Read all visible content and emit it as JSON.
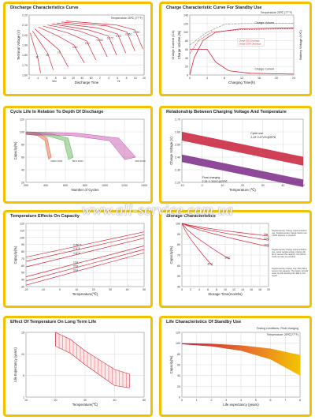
{
  "watermark": "www.all-service.com.ua",
  "colors": {
    "frame": "#f2c200",
    "curve": "#d6263a",
    "grid": "#cfcfcf",
    "fill_red": "#c81e3a",
    "fill_purple": "#7a2a86",
    "fill_yellow": "#f3c400"
  },
  "panels": [
    {
      "title": "Discharge Characteristics Curve",
      "chart_data": {
        "type": "line",
        "title": "Discharge Characteristics Curve",
        "annotation": "Temperature 25℃ (77°F)",
        "xlabel": "Discharge Time",
        "ylabel": "Terminal Voltage (V)",
        "ylim": [
          1.6,
          2.2
        ],
        "yticks": [
          "2.20",
          "2.10",
          "2.00",
          "1.90",
          "1.80",
          "1.70",
          "1.60"
        ],
        "xtick_groups": [
          {
            "unit": "Min",
            "ticks": [
              "2",
              "4",
              "6",
              "8",
              "10",
              "20",
              "40",
              "60"
            ]
          },
          {
            "unit": "Hr",
            "ticks": [
              "2",
              "4",
              "6",
              "8",
              "10",
              "20"
            ]
          }
        ],
        "series": [
          {
            "name": "3C",
            "points": [
              [
                0.1,
                2.02
              ],
              [
                0.4,
                1.9
              ],
              [
                0.7,
                1.8
              ],
              [
                1.0,
                1.62
              ]
            ]
          },
          {
            "name": "2C",
            "points": [
              [
                0.3,
                2.04
              ],
              [
                1.0,
                1.92
              ],
              [
                1.6,
                1.82
              ],
              [
                2.1,
                1.65
              ]
            ]
          },
          {
            "name": "1C",
            "points": [
              [
                0.5,
                2.06
              ],
              [
                1.6,
                1.95
              ],
              [
                2.6,
                1.85
              ],
              [
                3.4,
                1.68
              ]
            ]
          },
          {
            "name": "0.6C",
            "points": [
              [
                0.8,
                2.08
              ],
              [
                2.5,
                1.99
              ],
              [
                3.9,
                1.9
              ],
              [
                4.8,
                1.72
              ]
            ]
          },
          {
            "name": "0.4C",
            "points": [
              [
                1.2,
                2.09
              ],
              [
                3.4,
                2.02
              ],
              [
                5.0,
                1.94
              ],
              [
                5.8,
                1.75
              ]
            ]
          },
          {
            "name": "0.25C",
            "points": [
              [
                1.6,
                2.1
              ],
              [
                4.4,
                2.04
              ],
              [
                6.0,
                1.97
              ],
              [
                6.8,
                1.78
              ]
            ]
          },
          {
            "name": "0.17C",
            "points": [
              [
                2.0,
                2.11
              ],
              [
                5.2,
                2.05
              ],
              [
                6.9,
                1.99
              ],
              [
                7.6,
                1.8
              ]
            ]
          },
          {
            "name": "0.1C",
            "points": [
              [
                2.4,
                2.12
              ],
              [
                6.0,
                2.07
              ],
              [
                7.7,
                2.01
              ],
              [
                8.4,
                1.82
              ]
            ]
          },
          {
            "name": "0.05C",
            "points": [
              [
                2.8,
                2.13
              ],
              [
                6.8,
                2.09
              ],
              [
                8.5,
                2.03
              ],
              [
                9.2,
                1.84
              ]
            ]
          },
          {
            "name": "0.09C",
            "points": [
              [
                3.2,
                2.14
              ],
              [
                7.6,
                2.1
              ],
              [
                9.2,
                2.05
              ],
              [
                9.9,
                1.86
              ]
            ]
          }
        ]
      }
    },
    {
      "title": "Charge Characteristic Curve For Standby Use",
      "chart_data": {
        "type": "line",
        "title": "Charge Characteristic Curve For Standby Use",
        "annotation": "Temperature 25℃ (77°F)",
        "xlabel": "Charging Time(h)",
        "ylabel_left": "Charge Volume (%)",
        "ylabel_left2": "Charge Current (CA)",
        "ylabel_right": "Battery Voltage (V/C)",
        "xticks": [
          "0",
          "4",
          "8",
          "12",
          "16",
          "20",
          "24"
        ],
        "yticks_left": [
          "140",
          "120",
          "100",
          "80",
          "60",
          "40",
          "20",
          "0"
        ],
        "labels": [
          "Charge Volume",
          "Charge Current"
        ],
        "legend_small": [
          "Charge 50% Discharge",
          "Charge 100% Discharge"
        ]
      }
    },
    {
      "title": "Cycle Life In Relation To Depth Of Discharge",
      "chart_data": {
        "type": "line",
        "title": "Cycle Life In Relation To Depth Of Discharge",
        "xlabel": "Number of Cycles",
        "ylabel": "Capacity(%)",
        "xticks": [
          "200",
          "400",
          "600",
          "800",
          "1000",
          "1200",
          "1400"
        ],
        "yticks": [
          "120",
          "100",
          "80",
          "60",
          "40",
          "20"
        ],
        "series": [
          {
            "name": "100% DOD",
            "points": [
              [
                0,
                100
              ],
              [
                150,
                98
              ],
              [
                250,
                90
              ],
              [
                300,
                60
              ]
            ]
          },
          {
            "name": "50% DOD",
            "points": [
              [
                0,
                100
              ],
              [
                300,
                97
              ],
              [
                500,
                90
              ],
              [
                560,
                60
              ]
            ]
          },
          {
            "name": "30% DOD",
            "points": [
              [
                0,
                100
              ],
              [
                600,
                98
              ],
              [
                1100,
                90
              ],
              [
                1300,
                60
              ]
            ]
          }
        ]
      }
    },
    {
      "title": "Relationship Between Charging Voltage And Temperature",
      "chart_data": {
        "type": "area",
        "title": "Relationship Between Charging Voltage And Temperature",
        "xlabel": "Temperature (℃)",
        "ylabel": "Charge Voltage (V)",
        "xticks": [
          "-10",
          "0",
          "10",
          "20",
          "30",
          "40",
          "50"
        ],
        "yticks": [
          "2.70",
          "2.60",
          "2.50",
          "2.40",
          "2.30",
          "2.20"
        ],
        "bands": [
          {
            "name": "Cycle use",
            "label": "2.43~2.47V/C@25℃",
            "range": [
              2.43,
              2.47
            ]
          },
          {
            "name": "Float charging",
            "label": "2.25~2.30V/C@25℃",
            "range": [
              2.25,
              2.3
            ]
          }
        ]
      }
    },
    {
      "title": "Temperature Effects On Capacity",
      "chart_data": {
        "type": "line",
        "title": "Temperature Effects On Capacity",
        "xlabel": "Temperature(℃)",
        "ylabel": "Capacity(%)",
        "xticks": [
          "-20",
          "-10",
          "0",
          "10",
          "20",
          "30",
          "40",
          "50"
        ],
        "yticks": [
          "120",
          "110",
          "100",
          "90",
          "80",
          "70",
          "60",
          "50",
          "40",
          "30"
        ],
        "series": [
          {
            "name": "0.05CA",
            "points": [
              [
                -20,
                72
              ],
              [
                50,
                108
              ]
            ]
          },
          {
            "name": "0.1CA",
            "points": [
              [
                -20,
                66
              ],
              [
                50,
                104
              ]
            ]
          },
          {
            "name": "0.2CA",
            "points": [
              [
                -20,
                58
              ],
              [
                50,
                99
              ]
            ]
          },
          {
            "name": "1CA",
            "points": [
              [
                -20,
                44
              ],
              [
                50,
                88
              ]
            ]
          },
          {
            "name": "2CA",
            "points": [
              [
                -20,
                38
              ],
              [
                50,
                83
              ]
            ]
          },
          {
            "name": "3CA",
            "points": [
              [
                -20,
                32
              ],
              [
                50,
                78
              ]
            ]
          }
        ]
      }
    },
    {
      "title": "Storage Characteristics",
      "chart_data": {
        "type": "line",
        "title": "Storage Characteristics",
        "xlabel": "Storage Time(months)",
        "ylabel": "Capacity(%)",
        "xticks": [
          "0",
          "2",
          "4",
          "6",
          "8",
          "10",
          "12",
          "14",
          "16",
          "18",
          "20"
        ],
        "yticks": [
          "100",
          "90",
          "80",
          "70",
          "60",
          "50",
          "40"
        ],
        "series": [
          {
            "name": "0℃",
            "points": [
              [
                0,
                100
              ],
              [
                20,
                88
              ]
            ]
          },
          {
            "name": "10℃",
            "points": [
              [
                0,
                100
              ],
              [
                20,
                84
              ]
            ]
          },
          {
            "name": "20℃",
            "points": [
              [
                0,
                100
              ],
              [
                20,
                78
              ]
            ]
          },
          {
            "name": "30℃",
            "points": [
              [
                0,
                100
              ],
              [
                11,
                66
              ]
            ]
          },
          {
            "name": "40℃",
            "points": [
              [
                0,
                100
              ],
              [
                7,
                60
              ]
            ]
          }
        ],
        "notes": [
          "Supplementary charge required before use. Supplementary charge before use if 60% capacity is required.",
          "Supplementary charge required before use. Good supplementary charge will fail to recover the capacity, this will be made as early as possible.",
          "Supplementary charge may often fail to recover the capacity. The battery should never be left standing till it falls in this region."
        ]
      }
    },
    {
      "title": "Effect Of Temperature On Long Term Life",
      "chart_data": {
        "type": "area",
        "title": "Effect Of Temperature On Long Term Life",
        "xlabel": "Temperature(℃)",
        "ylabel": "Life Expectancy (years)",
        "xticks": [
          "10",
          "20",
          "30",
          "40",
          "50"
        ],
        "yticks": [
          "15",
          "10",
          "5",
          "1"
        ],
        "band": {
          "upper": [
            [
              20,
              15
            ],
            [
              25,
              13.5
            ],
            [
              30,
              11
            ],
            [
              40,
              7
            ],
            [
              45,
              6
            ]
          ],
          "lower": [
            [
              20,
              12
            ],
            [
              25,
              10.5
            ],
            [
              30,
              8
            ],
            [
              40,
              3.5
            ],
            [
              45,
              3
            ]
          ]
        }
      }
    },
    {
      "title": "Life Characteristics Of Standby Use",
      "chart_data": {
        "type": "area",
        "title": "Life Characteristics Of Standby Use",
        "annotation": "Testing conditions: Float charging",
        "annotation2": "Temperature: 25℃(77°F)",
        "xlabel": "Life expectancy (years)",
        "ylabel": "Capacity(%)",
        "xticks": [
          "0",
          "1",
          "2",
          "3",
          "4",
          "5",
          "6",
          "7",
          "8"
        ],
        "yticks": [
          "120",
          "100",
          "80",
          "60",
          "40",
          "20",
          "0"
        ]
      }
    }
  ]
}
